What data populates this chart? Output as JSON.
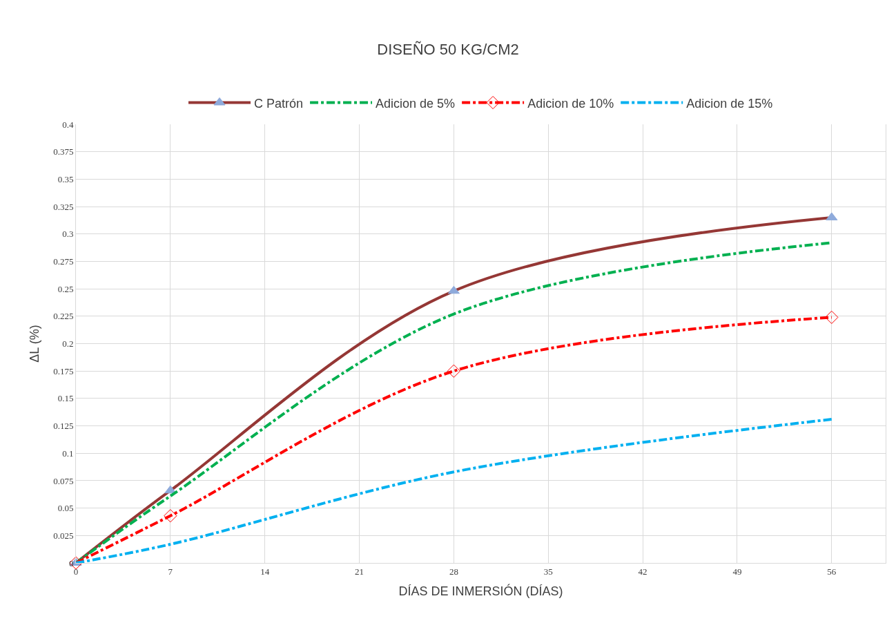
{
  "chart_data": {
    "type": "line",
    "title": "DISEÑO 50 KG/CM2",
    "xlabel": "DÍAS DE INMERSIÓN (DÍAS)",
    "ylabel": "ΔL (%)",
    "x": [
      0,
      7,
      28,
      56
    ],
    "series": [
      {
        "name": "C Patrón",
        "color": "#953735",
        "values": [
          0,
          0.066,
          0.248,
          0.315
        ],
        "marker": "triangle",
        "line_style": "solid"
      },
      {
        "name": "Adicion de 5%",
        "color": "#00b050",
        "values": [
          0,
          0.061,
          0.227,
          0.292
        ],
        "marker": "none",
        "line_style": "dashed"
      },
      {
        "name": "Adicion de 10%",
        "color": "#ff0000",
        "values": [
          0,
          0.043,
          0.175,
          0.224
        ],
        "marker": "diamond",
        "line_style": "dashed"
      },
      {
        "name": "Adicion de 15%",
        "color": "#00b0f0",
        "values": [
          0,
          0.017,
          0.083,
          0.131
        ],
        "marker": "none",
        "line_style": "dashed"
      }
    ],
    "xlim": [
      0,
      60
    ],
    "xticks": [
      0,
      7,
      14,
      21,
      28,
      35,
      42,
      49,
      56
    ],
    "ylim": [
      0,
      0.4
    ],
    "yticks": [
      0,
      0.025,
      0.05,
      0.075,
      0.1,
      0.125,
      0.15,
      0.175,
      0.2,
      0.225,
      0.25,
      0.275,
      0.3,
      0.325,
      0.35,
      0.375,
      0.4
    ],
    "grid": true,
    "legend": "top"
  }
}
